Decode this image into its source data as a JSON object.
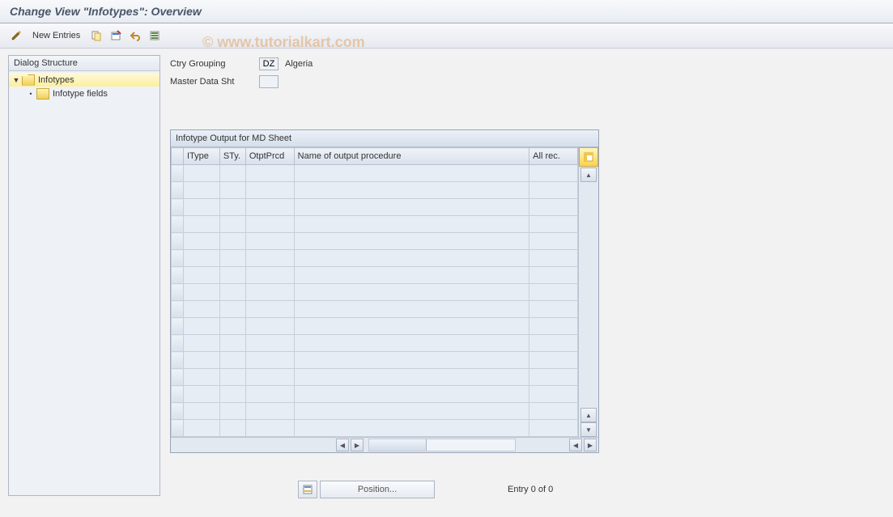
{
  "title": "Change View \"Infotypes\": Overview",
  "watermark": "© www.tutorialkart.com",
  "toolbar": {
    "new_entries": "New Entries"
  },
  "sidebar": {
    "header": "Dialog Structure",
    "node1": "Infotypes",
    "node2": "Infotype fields"
  },
  "form": {
    "ctry_label": "Ctry Grouping",
    "ctry_value": "DZ",
    "ctry_desc": "Algeria",
    "mds_label": "Master Data Sht",
    "mds_value": ""
  },
  "grid": {
    "title": "Infotype Output for MD Sheet",
    "columns": {
      "itype": "IType",
      "sty": "STy.",
      "otptprcd": "OtptPrcd",
      "name": "Name of output procedure",
      "allrec": "All rec."
    },
    "row_count": 16,
    "col_widths": {
      "sel": 14,
      "itype": 42,
      "sty": 30,
      "otptprcd": 56,
      "name": 272,
      "allrec": 56
    },
    "colors": {
      "border": "#b7c1cf",
      "header_bg_top": "#eef2f8",
      "header_bg_bot": "#dae1ec",
      "cell_bg": "#e7edf4"
    }
  },
  "footer": {
    "position_label": "Position...",
    "entry_text": "Entry 0 of 0"
  }
}
